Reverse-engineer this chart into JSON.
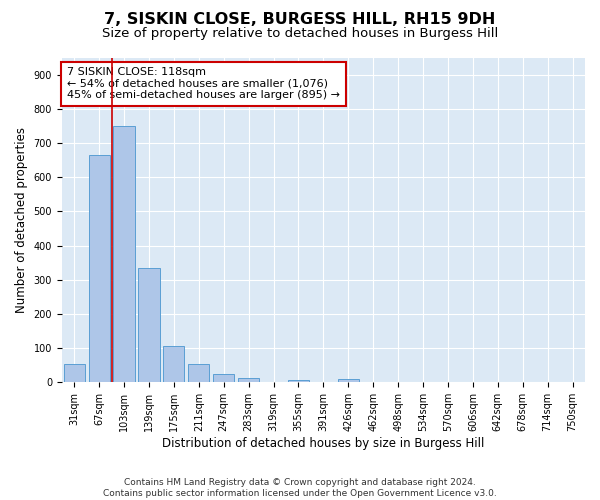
{
  "title": "7, SISKIN CLOSE, BURGESS HILL, RH15 9DH",
  "subtitle": "Size of property relative to detached houses in Burgess Hill",
  "xlabel": "Distribution of detached houses by size in Burgess Hill",
  "ylabel": "Number of detached properties",
  "bar_labels": [
    "31sqm",
    "67sqm",
    "103sqm",
    "139sqm",
    "175sqm",
    "211sqm",
    "247sqm",
    "283sqm",
    "319sqm",
    "355sqm",
    "391sqm",
    "426sqm",
    "462sqm",
    "498sqm",
    "534sqm",
    "570sqm",
    "606sqm",
    "642sqm",
    "678sqm",
    "714sqm",
    "750sqm"
  ],
  "bar_values": [
    55,
    665,
    750,
    335,
    105,
    55,
    25,
    13,
    0,
    8,
    0,
    10,
    0,
    0,
    0,
    0,
    0,
    0,
    0,
    0,
    0
  ],
  "bar_color": "#aec6e8",
  "bar_edge_color": "#5a9fd4",
  "vline_color": "#cc0000",
  "vline_x_index": 1.5,
  "annotation_text": "7 SISKIN CLOSE: 118sqm\n← 54% of detached houses are smaller (1,076)\n45% of semi-detached houses are larger (895) →",
  "annotation_box_facecolor": "#ffffff",
  "annotation_box_edgecolor": "#cc0000",
  "ylim": [
    0,
    950
  ],
  "yticks": [
    0,
    100,
    200,
    300,
    400,
    500,
    600,
    700,
    800,
    900
  ],
  "plot_bg_color": "#dce9f5",
  "footer_text": "Contains HM Land Registry data © Crown copyright and database right 2024.\nContains public sector information licensed under the Open Government Licence v3.0.",
  "title_fontsize": 11.5,
  "subtitle_fontsize": 9.5,
  "xlabel_fontsize": 8.5,
  "ylabel_fontsize": 8.5,
  "tick_fontsize": 7,
  "annotation_fontsize": 8,
  "footer_fontsize": 6.5
}
